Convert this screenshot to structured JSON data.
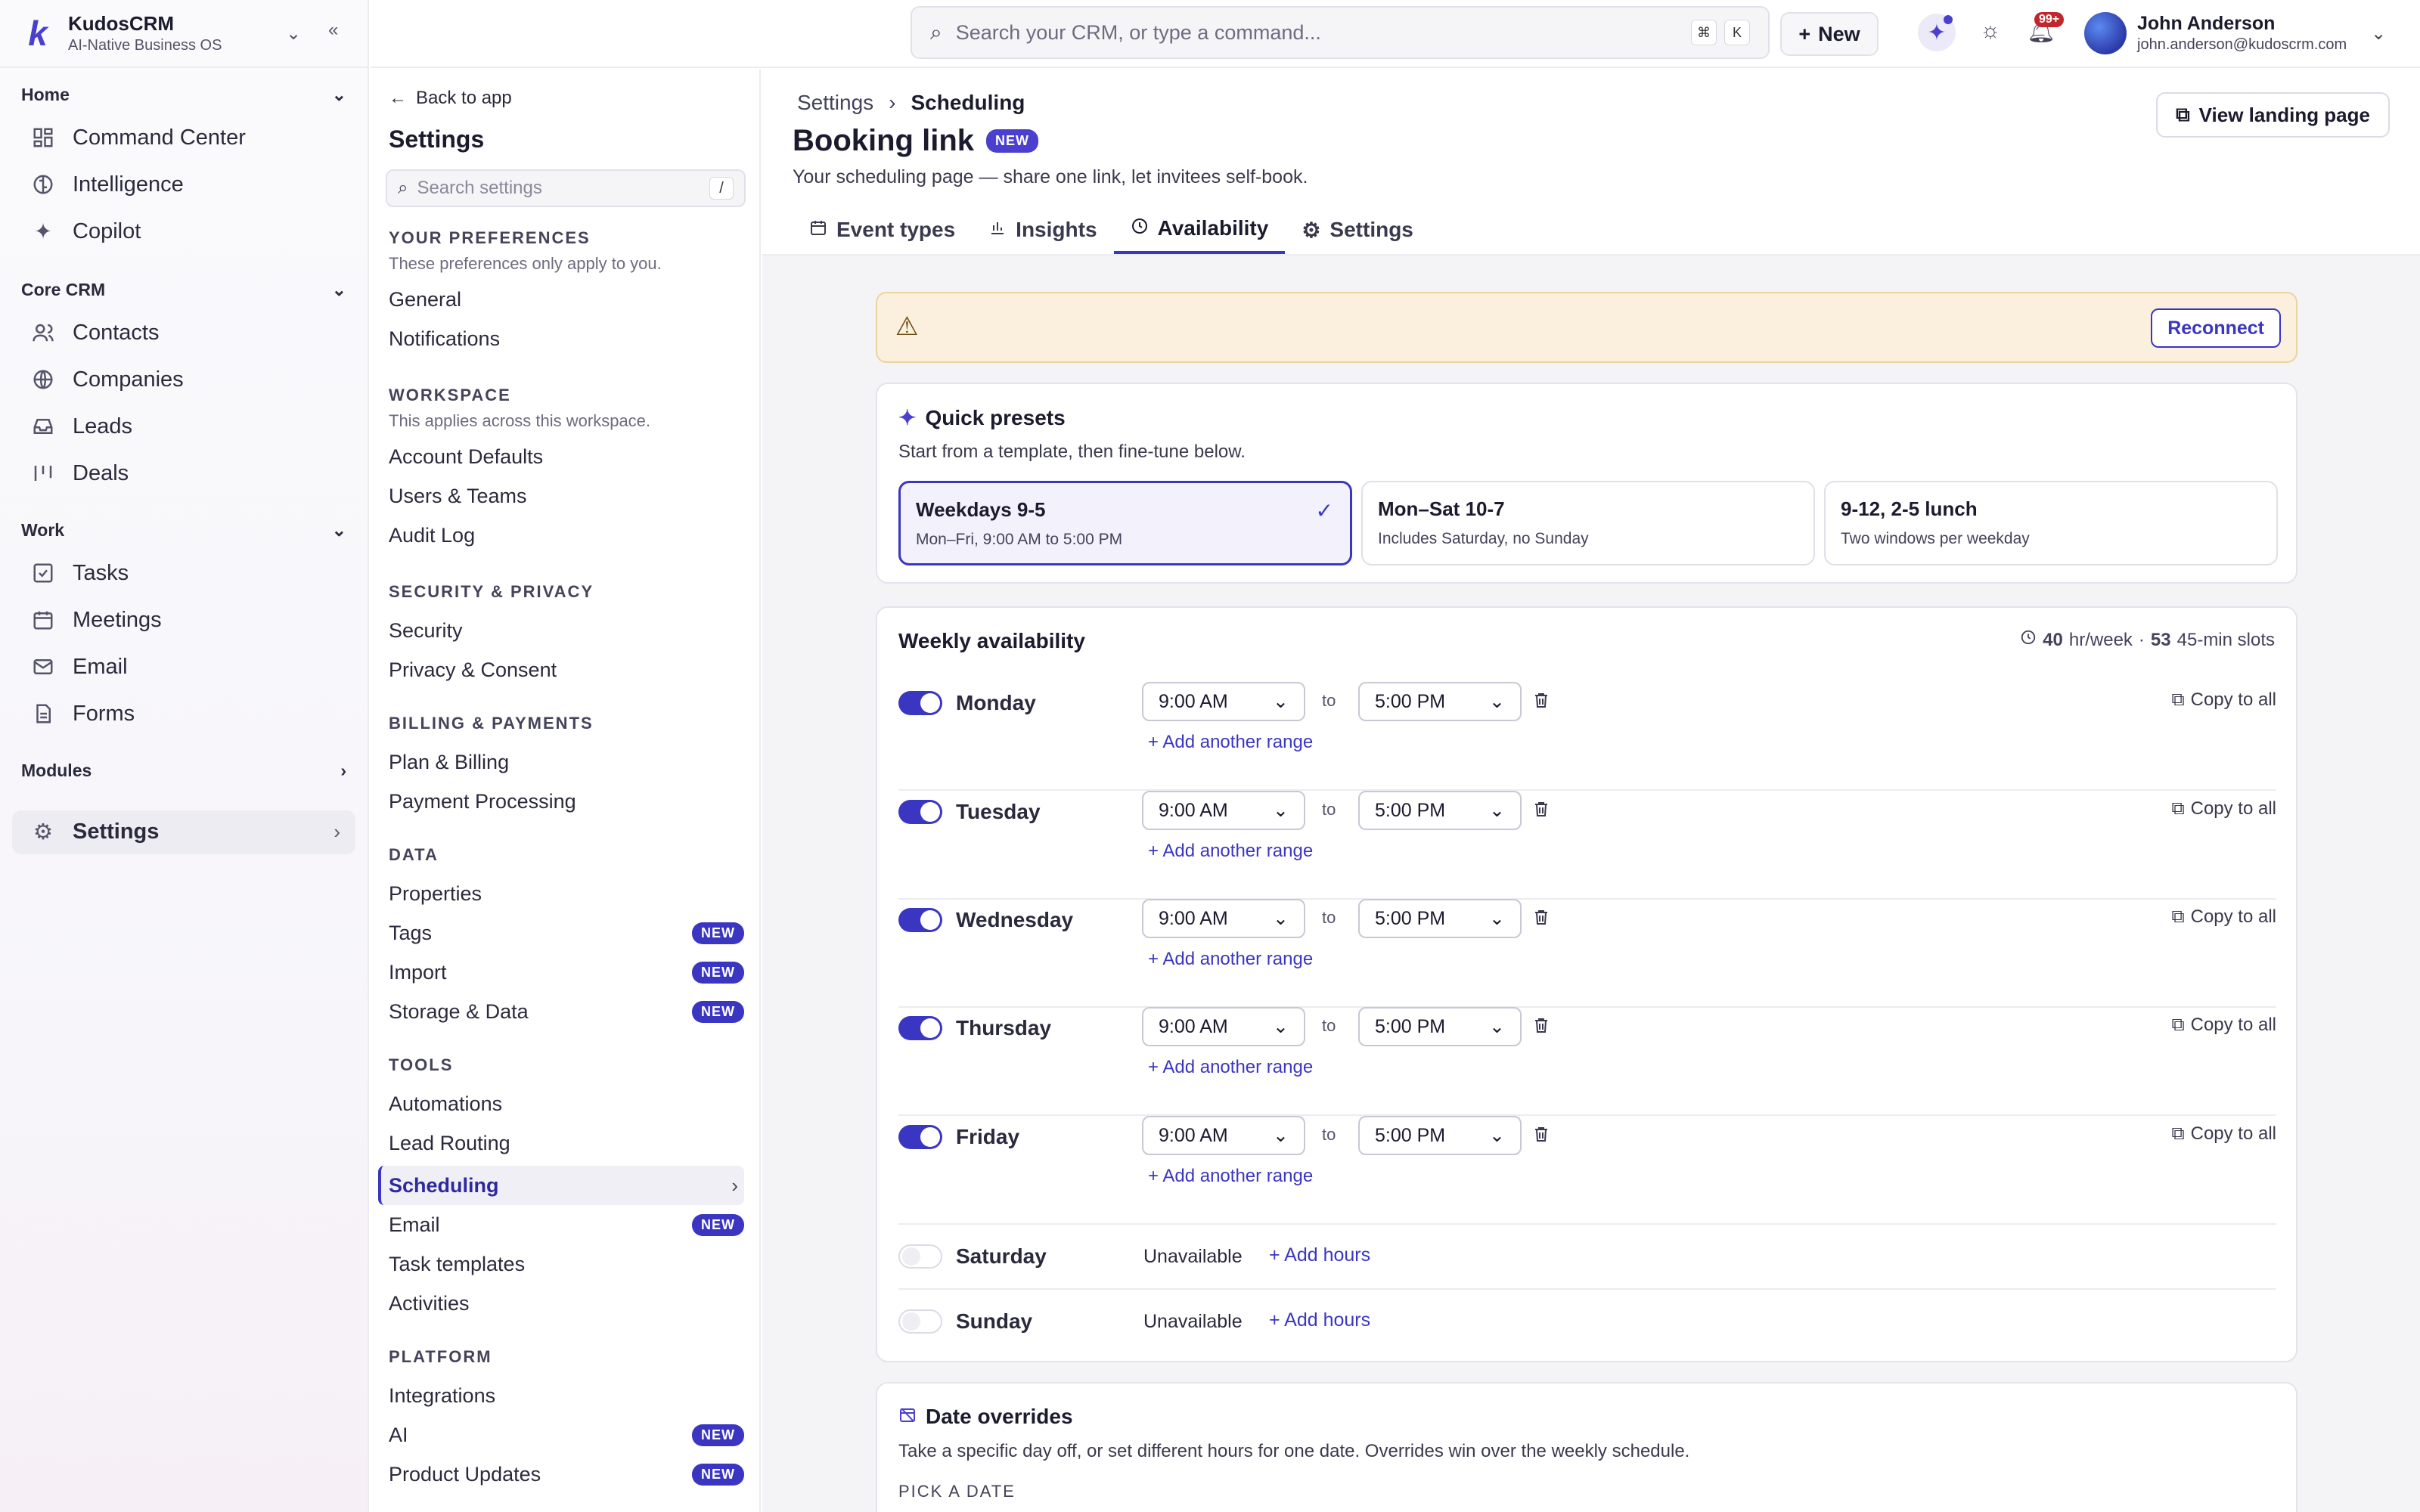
{
  "brand": {
    "name": "KudosCRM",
    "subtitle": "AI-Native Business OS"
  },
  "search": {
    "placeholder": "Search your CRM, or type a command...",
    "kbd1": "⌘",
    "kbd2": "K"
  },
  "topbar": {
    "new_label": "New",
    "notif_count": "99+"
  },
  "user": {
    "name": "John Anderson",
    "email": "john.anderson@kudoscrm.com"
  },
  "nav": {
    "home": "Home",
    "core": "Core CRM",
    "work": "Work",
    "modules": "Modules",
    "command": "Command Center",
    "intel": "Intelligence",
    "copilot": "Copilot",
    "contacts": "Contacts",
    "companies": "Companies",
    "leads": "Leads",
    "deals": "Deals",
    "tasks": "Tasks",
    "meetings": "Meetings",
    "email": "Email",
    "forms": "Forms",
    "settings": "Settings"
  },
  "settings": {
    "back": "Back to app",
    "title": "Settings",
    "search_placeholder": "Search settings",
    "search_kbd": "/",
    "g_pref": "YOUR PREFERENCES",
    "g_pref_desc": "These preferences only apply to you.",
    "general": "General",
    "notifications": "Notifications",
    "g_ws": "WORKSPACE",
    "g_ws_desc": "This applies across this workspace.",
    "account_defaults": "Account Defaults",
    "users_teams": "Users & Teams",
    "audit_log": "Audit Log",
    "g_sec": "SECURITY & PRIVACY",
    "security": "Security",
    "privacy": "Privacy & Consent",
    "g_bill": "BILLING & PAYMENTS",
    "plan": "Plan & Billing",
    "payment": "Payment Processing",
    "g_data": "DATA",
    "properties": "Properties",
    "tags": "Tags",
    "import": "Import",
    "storage": "Storage & Data",
    "g_tools": "TOOLS",
    "automations": "Automations",
    "lead_routing": "Lead Routing",
    "scheduling": "Scheduling",
    "email": "Email",
    "task_templates": "Task templates",
    "activities": "Activities",
    "g_platform": "PLATFORM",
    "integrations": "Integrations",
    "ai": "AI",
    "product_updates": "Product Updates",
    "new_badge": "NEW"
  },
  "page": {
    "crumb_root": "Settings",
    "crumb_current": "Scheduling",
    "title": "Booking link",
    "title_badge": "NEW",
    "subtitle": "Your scheduling page — share one link, let invitees self-book.",
    "view_landing": "View landing page",
    "tabs": [
      "Event types",
      "Insights",
      "Availability",
      "Settings"
    ]
  },
  "alert": {
    "reconnect": "Reconnect"
  },
  "presets": {
    "title": "Quick presets",
    "desc": "Start from a template, then fine-tune below.",
    "items": [
      {
        "name": "Weekdays 9-5",
        "desc": "Mon–Fri, 9:00 AM to 5:00 PM"
      },
      {
        "name": "Mon–Sat 10-7",
        "desc": "Includes Saturday, no Sunday"
      },
      {
        "name": "9-12, 2-5 lunch",
        "desc": "Two windows per weekday"
      }
    ]
  },
  "weekly": {
    "title": "Weekly availability",
    "hours": "40",
    "hours_unit": "hr/week",
    "slots": "53",
    "slots_unit": "45-min slots",
    "dot": "·",
    "to": "to",
    "add_range": "+ Add another range",
    "copy_all": "Copy to all",
    "unavailable": "Unavailable",
    "add_hours": "+ Add hours",
    "days": [
      {
        "name": "Monday",
        "start": "9:00 AM",
        "end": "5:00 PM"
      },
      {
        "name": "Tuesday",
        "start": "9:00 AM",
        "end": "5:00 PM"
      },
      {
        "name": "Wednesday",
        "start": "9:00 AM",
        "end": "5:00 PM"
      },
      {
        "name": "Thursday",
        "start": "9:00 AM",
        "end": "5:00 PM"
      },
      {
        "name": "Friday",
        "start": "9:00 AM",
        "end": "5:00 PM"
      },
      {
        "name": "Saturday"
      },
      {
        "name": "Sunday"
      }
    ]
  },
  "overrides": {
    "title": "Date overrides",
    "desc": "Take a specific day off, or set different hours for one date. Overrides win over the weekly schedule.",
    "pick": "PICK A DATE"
  }
}
